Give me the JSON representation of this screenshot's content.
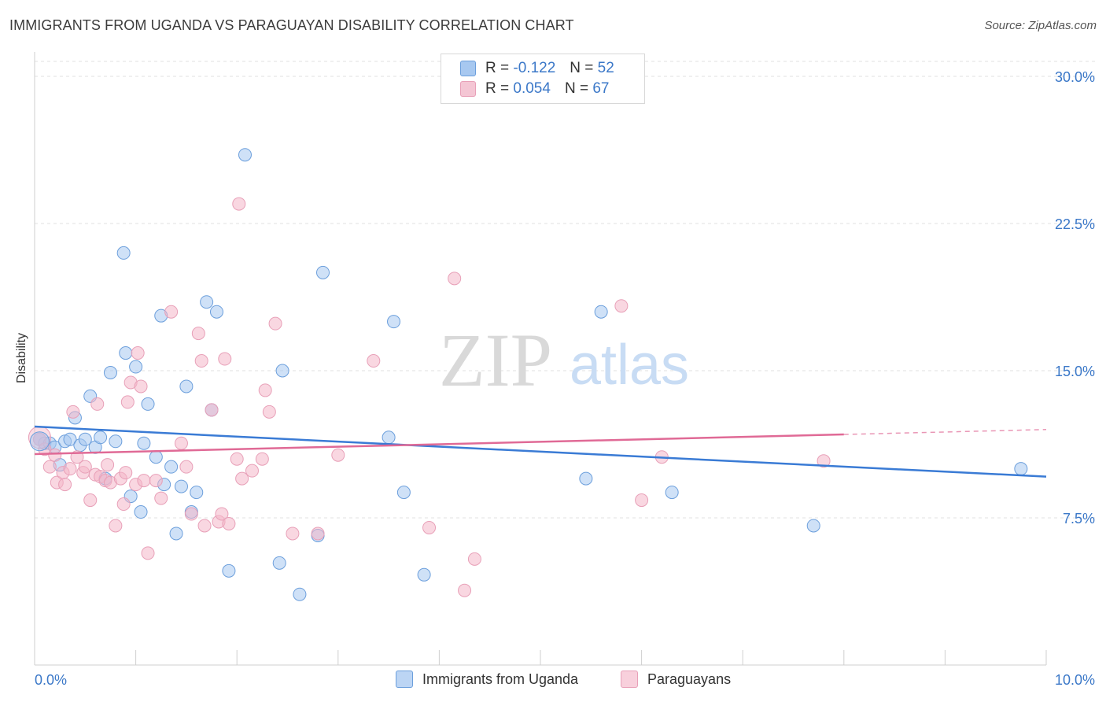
{
  "title": "IMMIGRANTS FROM UGANDA VS PARAGUAYAN DISABILITY CORRELATION CHART",
  "source": "Source: ZipAtlas.com",
  "watermark": {
    "zip": "ZIP",
    "atlas": "atlas"
  },
  "legend": {
    "rows": [
      {
        "r_label": "R =",
        "r_value": "-0.122",
        "n_label": "N =",
        "n_value": "52",
        "color": "#a7c8f0"
      },
      {
        "r_label": "R =",
        "r_value": "0.054",
        "n_label": "N =",
        "n_value": "67",
        "color": "#f4b6c8"
      }
    ]
  },
  "bottom_legend": [
    {
      "label": "Immigrants from Uganda",
      "color": "#a7c8f0"
    },
    {
      "label": "Paraguayans",
      "color": "#f4b6c8"
    }
  ],
  "chart_data": {
    "type": "scatter",
    "title": "IMMIGRANTS FROM UGANDA VS PARAGUAYAN DISABILITY CORRELATION CHART",
    "xlabel": "",
    "ylabel": "Disability",
    "xlim": [
      0,
      10
    ],
    "ylim": [
      0,
      30
    ],
    "x_tick_labels": [
      "0.0%",
      "10.0%"
    ],
    "y_ticks": [
      7.5,
      15.0,
      22.5,
      30.0
    ],
    "y_tick_labels": [
      "7.5%",
      "15.0%",
      "22.5%",
      "30.0%"
    ],
    "grid": "horizontal dashed",
    "series": [
      {
        "name": "Immigrants from Uganda",
        "color": "#3a7bd5",
        "fill": "#a7c8f0",
        "trend": {
          "x": [
            0,
            10
          ],
          "y": [
            12.15,
            9.6
          ]
        },
        "points": [
          [
            0.05,
            11.5
          ],
          [
            0.1,
            11.3
          ],
          [
            0.15,
            11.3
          ],
          [
            0.2,
            11.1
          ],
          [
            0.25,
            10.2
          ],
          [
            0.3,
            11.4
          ],
          [
            0.35,
            11.5
          ],
          [
            0.4,
            12.6
          ],
          [
            0.45,
            11.2
          ],
          [
            0.5,
            11.5
          ],
          [
            0.55,
            13.7
          ],
          [
            0.6,
            11.1
          ],
          [
            0.65,
            11.6
          ],
          [
            0.7,
            9.5
          ],
          [
            0.75,
            14.9
          ],
          [
            0.8,
            11.4
          ],
          [
            0.88,
            21.0
          ],
          [
            0.9,
            15.9
          ],
          [
            0.95,
            8.6
          ],
          [
            1.0,
            15.2
          ],
          [
            1.05,
            7.8
          ],
          [
            1.08,
            11.3
          ],
          [
            1.12,
            13.3
          ],
          [
            1.2,
            10.6
          ],
          [
            1.25,
            17.8
          ],
          [
            1.28,
            9.2
          ],
          [
            1.35,
            10.1
          ],
          [
            1.4,
            6.7
          ],
          [
            1.45,
            9.1
          ],
          [
            1.5,
            14.2
          ],
          [
            1.55,
            7.8
          ],
          [
            1.6,
            8.8
          ],
          [
            1.7,
            18.5
          ],
          [
            1.75,
            13.0
          ],
          [
            1.8,
            18.0
          ],
          [
            1.92,
            4.8
          ],
          [
            2.08,
            26.0
          ],
          [
            2.42,
            5.2
          ],
          [
            2.45,
            15.0
          ],
          [
            2.62,
            3.6
          ],
          [
            2.8,
            6.6
          ],
          [
            2.85,
            20.0
          ],
          [
            3.5,
            11.6
          ],
          [
            3.55,
            17.5
          ],
          [
            3.65,
            8.8
          ],
          [
            3.85,
            4.6
          ],
          [
            5.45,
            9.5
          ],
          [
            5.6,
            18.0
          ],
          [
            6.3,
            8.8
          ],
          [
            7.7,
            7.1
          ],
          [
            9.75,
            10.0
          ]
        ]
      },
      {
        "name": "Paraguayans",
        "color": "#e06a96",
        "fill": "#f4b6c8",
        "trend": {
          "x": [
            0,
            8.0
          ],
          "y": [
            10.75,
            11.75
          ]
        },
        "trend_dashed": {
          "x": [
            8.0,
            10
          ],
          "y": [
            11.75,
            12.0
          ]
        },
        "points": [
          [
            0.05,
            11.5
          ],
          [
            0.1,
            11.0
          ],
          [
            0.15,
            10.1
          ],
          [
            0.2,
            10.7
          ],
          [
            0.22,
            9.3
          ],
          [
            0.28,
            9.8
          ],
          [
            0.3,
            9.2
          ],
          [
            0.35,
            10.0
          ],
          [
            0.38,
            12.9
          ],
          [
            0.42,
            10.6
          ],
          [
            0.48,
            9.8
          ],
          [
            0.5,
            10.1
          ],
          [
            0.55,
            8.4
          ],
          [
            0.6,
            9.7
          ],
          [
            0.62,
            13.3
          ],
          [
            0.65,
            9.6
          ],
          [
            0.7,
            9.4
          ],
          [
            0.72,
            10.2
          ],
          [
            0.75,
            9.3
          ],
          [
            0.8,
            7.1
          ],
          [
            0.85,
            9.5
          ],
          [
            0.88,
            8.2
          ],
          [
            0.9,
            9.8
          ],
          [
            0.92,
            13.4
          ],
          [
            0.95,
            14.4
          ],
          [
            1.0,
            9.2
          ],
          [
            1.02,
            15.9
          ],
          [
            1.05,
            14.2
          ],
          [
            1.08,
            9.4
          ],
          [
            1.12,
            5.7
          ],
          [
            1.2,
            9.4
          ],
          [
            1.25,
            8.5
          ],
          [
            1.35,
            18.0
          ],
          [
            1.45,
            11.3
          ],
          [
            1.5,
            10.1
          ],
          [
            1.55,
            7.7
          ],
          [
            1.62,
            16.9
          ],
          [
            1.65,
            15.5
          ],
          [
            1.68,
            7.1
          ],
          [
            1.75,
            13.0
          ],
          [
            1.82,
            7.3
          ],
          [
            1.85,
            7.7
          ],
          [
            1.88,
            15.6
          ],
          [
            1.92,
            7.2
          ],
          [
            2.0,
            10.5
          ],
          [
            2.02,
            23.5
          ],
          [
            2.05,
            9.5
          ],
          [
            2.15,
            9.9
          ],
          [
            2.25,
            10.5
          ],
          [
            2.28,
            14.0
          ],
          [
            2.32,
            12.9
          ],
          [
            2.38,
            17.4
          ],
          [
            2.55,
            6.7
          ],
          [
            2.8,
            6.7
          ],
          [
            3.0,
            10.7
          ],
          [
            3.35,
            15.5
          ],
          [
            3.9,
            7.0
          ],
          [
            4.15,
            19.7
          ],
          [
            4.25,
            3.8
          ],
          [
            4.35,
            5.4
          ],
          [
            5.8,
            18.3
          ],
          [
            6.0,
            8.4
          ],
          [
            6.2,
            10.6
          ],
          [
            7.8,
            10.4
          ]
        ]
      }
    ]
  }
}
